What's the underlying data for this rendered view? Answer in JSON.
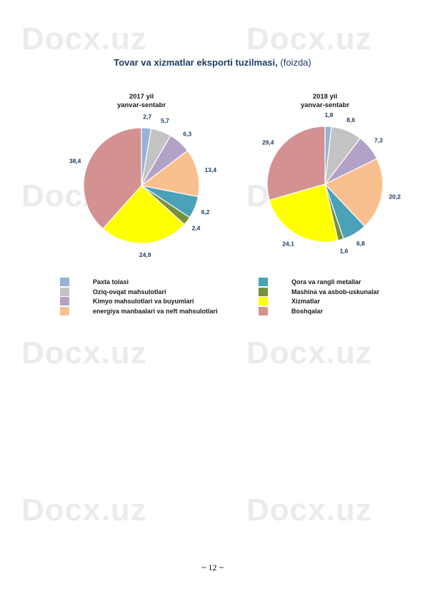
{
  "watermark": "Docx.uz",
  "title": {
    "bold": "Tovar va xizmatlar eksporti tuzilmasi,",
    "normal": "(foizda)"
  },
  "colors": {
    "Paxta tolasi": "#94b3d7",
    "Oziq-ovqat mahsulotlari": "#c3c3c3",
    "Kimyo mahsulotlari va buyumlari": "#b3a2c8",
    "energiya manbaalari va neft mahsulotlari": "#f9c08f",
    "Qora va rangli metallar": "#4aa1b8",
    "Mashina va asbob-uskunalar": "#77923b",
    "Xizmatlar": "#ffff00",
    "Boshqalar": "#d39191"
  },
  "legend": [
    "Paxta tolasi",
    "Oziq-ovqat mahsulotlari",
    "Kimyo mahsulotlari va buyumlari",
    "energiya manbaalari va neft mahsulotlari",
    "Qora va rangli metallar",
    "Mashina va asbob-uskunalar",
    "Xizmatlar",
    "Boshqalar"
  ],
  "chart_data": [
    {
      "type": "pie",
      "title": "2017 yil\nyanvar-sentabr",
      "categories": [
        "Paxta tolasi",
        "Oziq-ovqat mahsulotlari",
        "Kimyo mahsulotlari va buyumlari",
        "energiya manbaalari va neft mahsulotlari",
        "Qora va rangli metallar",
        "Mashina va asbob-uskunalar",
        "Xizmatlar",
        "Boshqalar"
      ],
      "values": [
        2.7,
        5.7,
        6.3,
        13.4,
        6.2,
        2.4,
        24.9,
        38.4
      ],
      "labels": [
        "2,7",
        "5,7",
        "6,3",
        "13,4",
        "6,2",
        "2,4",
        "24,9",
        "38,4"
      ],
      "legend_position": "bottom"
    },
    {
      "type": "pie",
      "title": "2018 yil\nyanvar-sentabr",
      "categories": [
        "Paxta tolasi",
        "Oziq-ovqat mahsulotlari",
        "Kimyo mahsulotlari va buyumlari",
        "energiya manbaalari va neft mahsulotlari",
        "Qora va rangli metallar",
        "Mashina va asbob-uskunalar",
        "Xizmatlar",
        "Boshqalar"
      ],
      "values": [
        1.8,
        8.6,
        7.3,
        20.2,
        6.8,
        1.6,
        24.1,
        29.4
      ],
      "labels": [
        "1,8",
        "8,6",
        "7,3",
        "20,2",
        "6,8",
        "1,6",
        "24,1",
        "29,4"
      ],
      "legend_position": "bottom"
    }
  ],
  "page_number": "~ 12 ~"
}
